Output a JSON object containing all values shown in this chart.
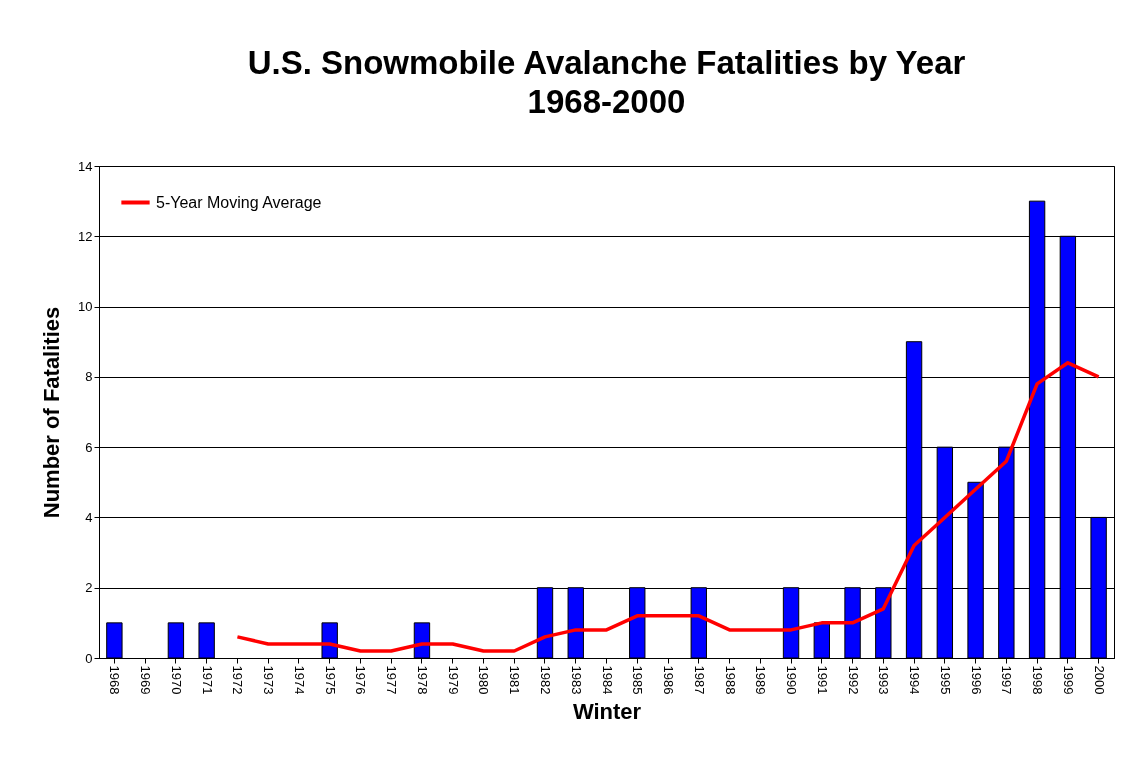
{
  "chart_data": {
    "type": "bar",
    "title": "U.S. Snowmobile Avalanche Fatalities by Year",
    "subtitle": "1968-2000",
    "xlabel": "Winter",
    "ylabel": "Number of Fatalities",
    "categories": [
      "1968",
      "1969",
      "1970",
      "1971",
      "1972",
      "1973",
      "1974",
      "1975",
      "1976",
      "1977",
      "1978",
      "1979",
      "1980",
      "1981",
      "1982",
      "1983",
      "1984",
      "1985",
      "1986",
      "1987",
      "1988",
      "1989",
      "1990",
      "1991",
      "1992",
      "1993",
      "1994",
      "1995",
      "1996",
      "1997",
      "1998",
      "1999",
      "2000"
    ],
    "series": [
      {
        "color": "#0000ff",
        "values": [
          1,
          0,
          1,
          1,
          0,
          0,
          0,
          1,
          0,
          0,
          1,
          0,
          0,
          0,
          2,
          2,
          0,
          2,
          0,
          2,
          0,
          0,
          2,
          1,
          2,
          2,
          9,
          6,
          5,
          6,
          13,
          12,
          4
        ]
      },
      {
        "type": "line",
        "name": "5-Year Moving Average",
        "color": "#ff0000",
        "values": [
          null,
          null,
          null,
          null,
          0.6,
          0.4,
          0.4,
          0.4,
          0.2,
          0.2,
          0.4,
          0.4,
          0.2,
          0.2,
          0.6,
          0.8,
          0.8,
          1.2,
          1.2,
          1.2,
          0.8,
          0.8,
          0.8,
          1.0,
          1.0,
          1.4,
          3.2,
          4.0,
          4.8,
          5.6,
          7.8,
          8.4,
          8.0
        ]
      }
    ],
    "ylim": [
      0,
      14
    ],
    "yticks": [
      0,
      2,
      4,
      6,
      8,
      10,
      12,
      14
    ],
    "grid": "y",
    "legend": "top left",
    "marker": "none",
    "line_style": "solid"
  }
}
